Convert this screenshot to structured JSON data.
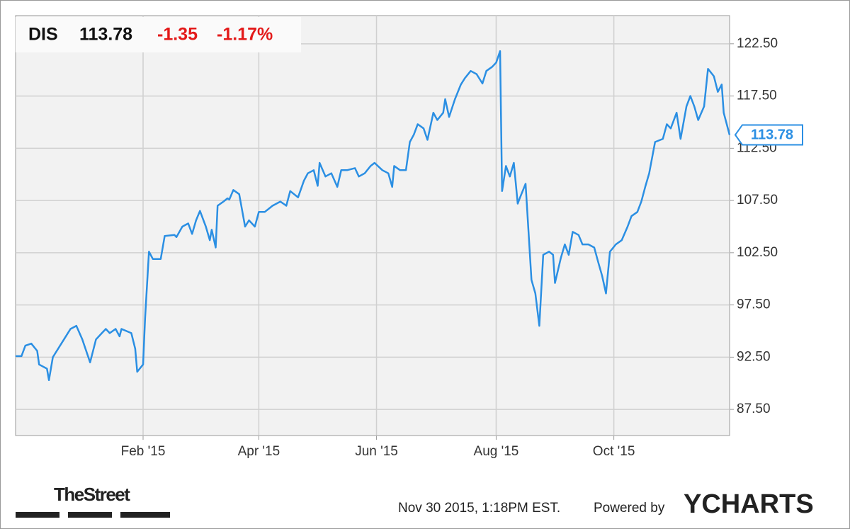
{
  "chart_data": {
    "type": "line",
    "ticker": "DIS",
    "price": 113.78,
    "change": -1.35,
    "change_pct": "-1.17%",
    "color": "#2b8fe3",
    "x": [
      0,
      3,
      5,
      8,
      11,
      12,
      16,
      17,
      19,
      25,
      28,
      31,
      34,
      38,
      41,
      44,
      46,
      48,
      51,
      53,
      54,
      59,
      61,
      62,
      65,
      66,
      68,
      70,
      74,
      76,
      81,
      82,
      85,
      88,
      90,
      92,
      94,
      97,
      99,
      100,
      102,
      103,
      106,
      108,
      109,
      111,
      114,
      117,
      119,
      122,
      124,
      127,
      131,
      135,
      138,
      140,
      144,
      147,
      149,
      152,
      154,
      155,
      158,
      161,
      164,
      166,
      169,
      173,
      175,
      178,
      181,
      183,
      187,
      190,
      192,
      193,
      196,
      199,
      201,
      203,
      205,
      208,
      210,
      213,
      215,
      218,
      219,
      221,
      224,
      227,
      229,
      232,
      235,
      238,
      240,
      243,
      245,
      247,
      248,
      250,
      252,
      254,
      256,
      257,
      260,
      261,
      263,
      265,
      267,
      269,
      272,
      274,
      275,
      278,
      280,
      282,
      284,
      287,
      289,
      292,
      295,
      297,
      299,
      301,
      303,
      306,
      309,
      312,
      314,
      317,
      319,
      321,
      323,
      326,
      330,
      332,
      334,
      337,
      339,
      342,
      344,
      346,
      348,
      351,
      353,
      356,
      358,
      360,
      361,
      364
    ],
    "values": [
      92.6,
      92.6,
      93.6,
      93.8,
      93.1,
      91.8,
      91.4,
      90.3,
      92.5,
      94.3,
      95.2,
      95.5,
      94.2,
      92.0,
      94.2,
      94.8,
      95.2,
      94.8,
      95.2,
      94.5,
      95.2,
      94.8,
      93.3,
      91.1,
      91.8,
      96.2,
      102.6,
      101.9,
      101.9,
      104.1,
      104.2,
      104.0,
      105.0,
      105.3,
      104.3,
      105.6,
      106.5,
      105.0,
      103.7,
      104.7,
      103.0,
      107.0,
      107.4,
      107.7,
      107.6,
      108.5,
      108.1,
      105.0,
      105.6,
      105.0,
      106.4,
      106.4,
      107.0,
      107.4,
      107.0,
      108.4,
      107.8,
      109.4,
      110.1,
      110.4,
      108.9,
      111.1,
      109.8,
      110.1,
      108.8,
      110.4,
      110.4,
      110.6,
      109.8,
      110.1,
      110.8,
      111.1,
      110.4,
      110.1,
      108.8,
      110.8,
      110.4,
      110.4,
      113.1,
      113.8,
      114.8,
      114.4,
      113.3,
      115.9,
      115.2,
      115.9,
      117.2,
      115.5,
      117.2,
      118.6,
      119.2,
      119.9,
      119.6,
      118.7,
      119.9,
      120.3,
      120.7,
      121.8,
      108.4,
      110.8,
      109.8,
      111.1,
      107.2,
      107.7,
      109.1,
      106.0,
      99.9,
      98.6,
      95.5,
      102.3,
      102.6,
      102.3,
      99.6,
      102.0,
      103.3,
      102.3,
      104.5,
      104.2,
      103.3,
      103.3,
      103.0,
      101.6,
      100.3,
      98.6,
      102.6,
      103.3,
      103.7,
      105.0,
      106.0,
      106.4,
      107.4,
      108.8,
      110.1,
      113.1,
      113.4,
      114.8,
      114.4,
      115.9,
      113.4,
      116.5,
      117.5,
      116.5,
      115.2,
      116.5,
      120.1,
      119.4,
      117.9,
      118.6,
      115.9,
      113.78
    ],
    "xlim": [
      0,
      364
    ],
    "xticks": [
      {
        "value": 65,
        "label": "Feb '15"
      },
      {
        "value": 124,
        "label": "Apr '15"
      },
      {
        "value": 184,
        "label": "Jun '15"
      },
      {
        "value": 245,
        "label": "Aug '15"
      },
      {
        "value": 305,
        "label": "Oct '15"
      }
    ],
    "ylim": [
      85.0,
      125.2
    ],
    "yticks": [
      {
        "value": 87.5,
        "label": "87.50"
      },
      {
        "value": 92.5,
        "label": "92.50"
      },
      {
        "value": 97.5,
        "label": "97.50"
      },
      {
        "value": 102.5,
        "label": "102.50"
      },
      {
        "value": 107.5,
        "label": "107.50"
      },
      {
        "value": 112.5,
        "label": "112.50"
      },
      {
        "value": 117.5,
        "label": "117.50"
      },
      {
        "value": 122.5,
        "label": "122.50"
      }
    ],
    "grid": true
  },
  "footer": {
    "source": "TheStreet",
    "timestamp": "Nov 30 2015, 1:18PM EST.",
    "powered_by": "Powered by",
    "brand": "YCHARTS"
  }
}
